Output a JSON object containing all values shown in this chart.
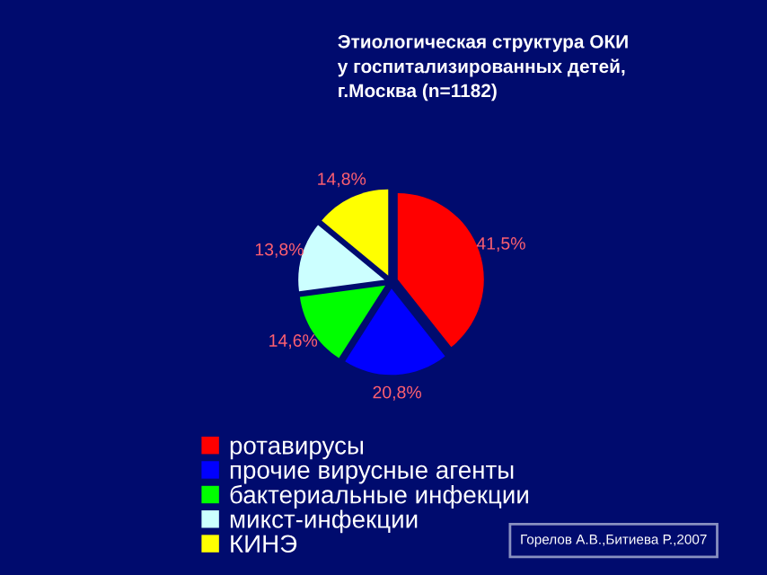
{
  "chart_data": {
    "type": "pie",
    "title": "Этиологическая структура ОКИ\nу госпитализированных детей,\nг.Москва (n=1182)",
    "categories": [
      "ротавирусы",
      "прочие вирусные агенты",
      "бактериальные инфекции",
      "микст-инфекции",
      "КИНЭ"
    ],
    "values": [
      41.5,
      20.8,
      14.6,
      13.8,
      14.8
    ],
    "colors": [
      "#ff0000",
      "#0000ff",
      "#00ff00",
      "#ccffff",
      "#ffff00"
    ],
    "value_labels": [
      "41,5%",
      "20,8%",
      "14,6%",
      "13,8%",
      "14,8%"
    ],
    "legend": "bottom",
    "annotations": [
      "Горелов А.В.,Битиева Р.,2007"
    ]
  }
}
